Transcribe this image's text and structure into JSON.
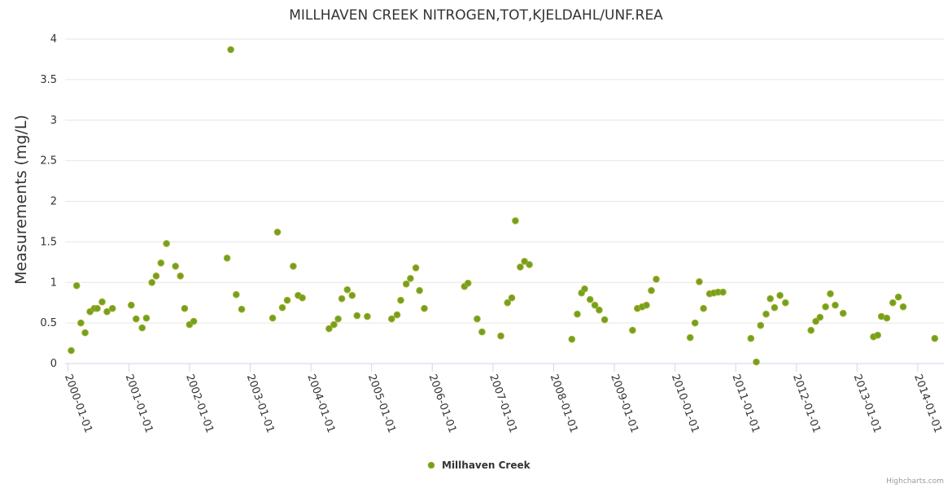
{
  "chart_data": {
    "type": "scatter",
    "title": "MILLHAVEN CREEK NITROGEN,TOT,KJELDAHL/UNF.REA",
    "xlabel": "",
    "ylabel": "Measurements (mg/L)",
    "ylim": [
      0,
      4
    ],
    "y_ticks": [
      "0",
      "0.5",
      "1",
      "1.5",
      "2",
      "2.5",
      "3",
      "3.5",
      "4"
    ],
    "y_tick_values": [
      0,
      0.5,
      1,
      1.5,
      2,
      2.5,
      3,
      3.5,
      4
    ],
    "xlim": [
      1999.95,
      2014.43
    ],
    "x_ticks": [
      "2000-01-01",
      "2001-01-01",
      "2002-01-01",
      "2003-01-01",
      "2004-01-01",
      "2005-01-01",
      "2006-01-01",
      "2007-01-01",
      "2008-01-01",
      "2009-01-01",
      "2010-01-01",
      "2011-01-01",
      "2012-01-01",
      "2013-01-01",
      "2014-01-01"
    ],
    "x_tick_values": [
      2000,
      2001,
      2002,
      2003,
      2004,
      2005,
      2006,
      2007,
      2008,
      2009,
      2010,
      2011,
      2012,
      2013,
      2014
    ],
    "grid": "horizontal",
    "legend_position": "bottom-center",
    "series": [
      {
        "name": "Millhaven Creek",
        "color": "#6aa51f",
        "border_color": "#b5a52b",
        "x": [
          2000.05,
          2000.14,
          2000.21,
          2000.28,
          2000.36,
          2000.43,
          2000.48,
          2000.56,
          2000.64,
          2000.73,
          2001.04,
          2001.12,
          2001.22,
          2001.29,
          2001.38,
          2001.45,
          2001.53,
          2001.62,
          2001.77,
          2001.85,
          2001.92,
          2002.0,
          2002.07,
          2002.62,
          2002.68,
          2002.77,
          2002.86,
          2003.37,
          2003.45,
          2003.53,
          2003.61,
          2003.71,
          2003.79,
          2003.86,
          2004.3,
          2004.38,
          2004.45,
          2004.51,
          2004.6,
          2004.68,
          2004.76,
          2004.93,
          2005.33,
          2005.42,
          2005.48,
          2005.57,
          2005.64,
          2005.73,
          2005.79,
          2005.87,
          2006.53,
          2006.59,
          2006.74,
          2006.82,
          2007.13,
          2007.24,
          2007.31,
          2007.37,
          2007.45,
          2007.52,
          2007.6,
          2008.3,
          2008.39,
          2008.46,
          2008.51,
          2008.6,
          2008.68,
          2008.75,
          2008.84,
          2009.3,
          2009.38,
          2009.46,
          2009.53,
          2009.61,
          2009.69,
          2010.25,
          2010.33,
          2010.4,
          2010.47,
          2010.57,
          2010.64,
          2010.71,
          2010.79,
          2011.25,
          2011.34,
          2011.41,
          2011.5,
          2011.57,
          2011.64,
          2011.73,
          2011.82,
          2012.24,
          2012.32,
          2012.39,
          2012.48,
          2012.56,
          2012.64,
          2012.77,
          2013.27,
          2013.34,
          2013.4,
          2013.49,
          2013.59,
          2013.68,
          2013.76,
          2014.28
        ],
        "y": [
          0.16,
          0.96,
          0.5,
          0.38,
          0.64,
          0.68,
          0.68,
          0.76,
          0.64,
          0.68,
          0.72,
          0.55,
          0.44,
          0.56,
          1.0,
          1.08,
          1.24,
          1.48,
          1.2,
          1.08,
          0.68,
          0.48,
          0.52,
          1.3,
          3.87,
          0.85,
          0.67,
          0.56,
          1.62,
          0.69,
          0.78,
          1.2,
          0.84,
          0.81,
          0.43,
          0.48,
          0.55,
          0.8,
          0.91,
          0.84,
          0.59,
          0.58,
          0.55,
          0.6,
          0.78,
          0.98,
          1.05,
          1.18,
          0.9,
          0.68,
          0.95,
          0.99,
          0.55,
          0.39,
          0.34,
          0.75,
          0.81,
          1.76,
          1.19,
          1.26,
          1.22,
          0.3,
          0.61,
          0.87,
          0.92,
          0.79,
          0.72,
          0.66,
          0.54,
          0.41,
          0.68,
          0.7,
          0.72,
          0.9,
          1.04,
          0.32,
          0.5,
          1.01,
          0.68,
          0.86,
          0.87,
          0.88,
          0.88,
          0.31,
          0.02,
          0.47,
          0.61,
          0.8,
          0.69,
          0.84,
          0.75,
          0.41,
          0.52,
          0.57,
          0.7,
          0.86,
          0.72,
          0.62,
          0.33,
          0.35,
          0.58,
          0.56,
          0.75,
          0.82,
          0.7,
          0.31
        ]
      }
    ]
  },
  "credits": "Highcharts.com"
}
